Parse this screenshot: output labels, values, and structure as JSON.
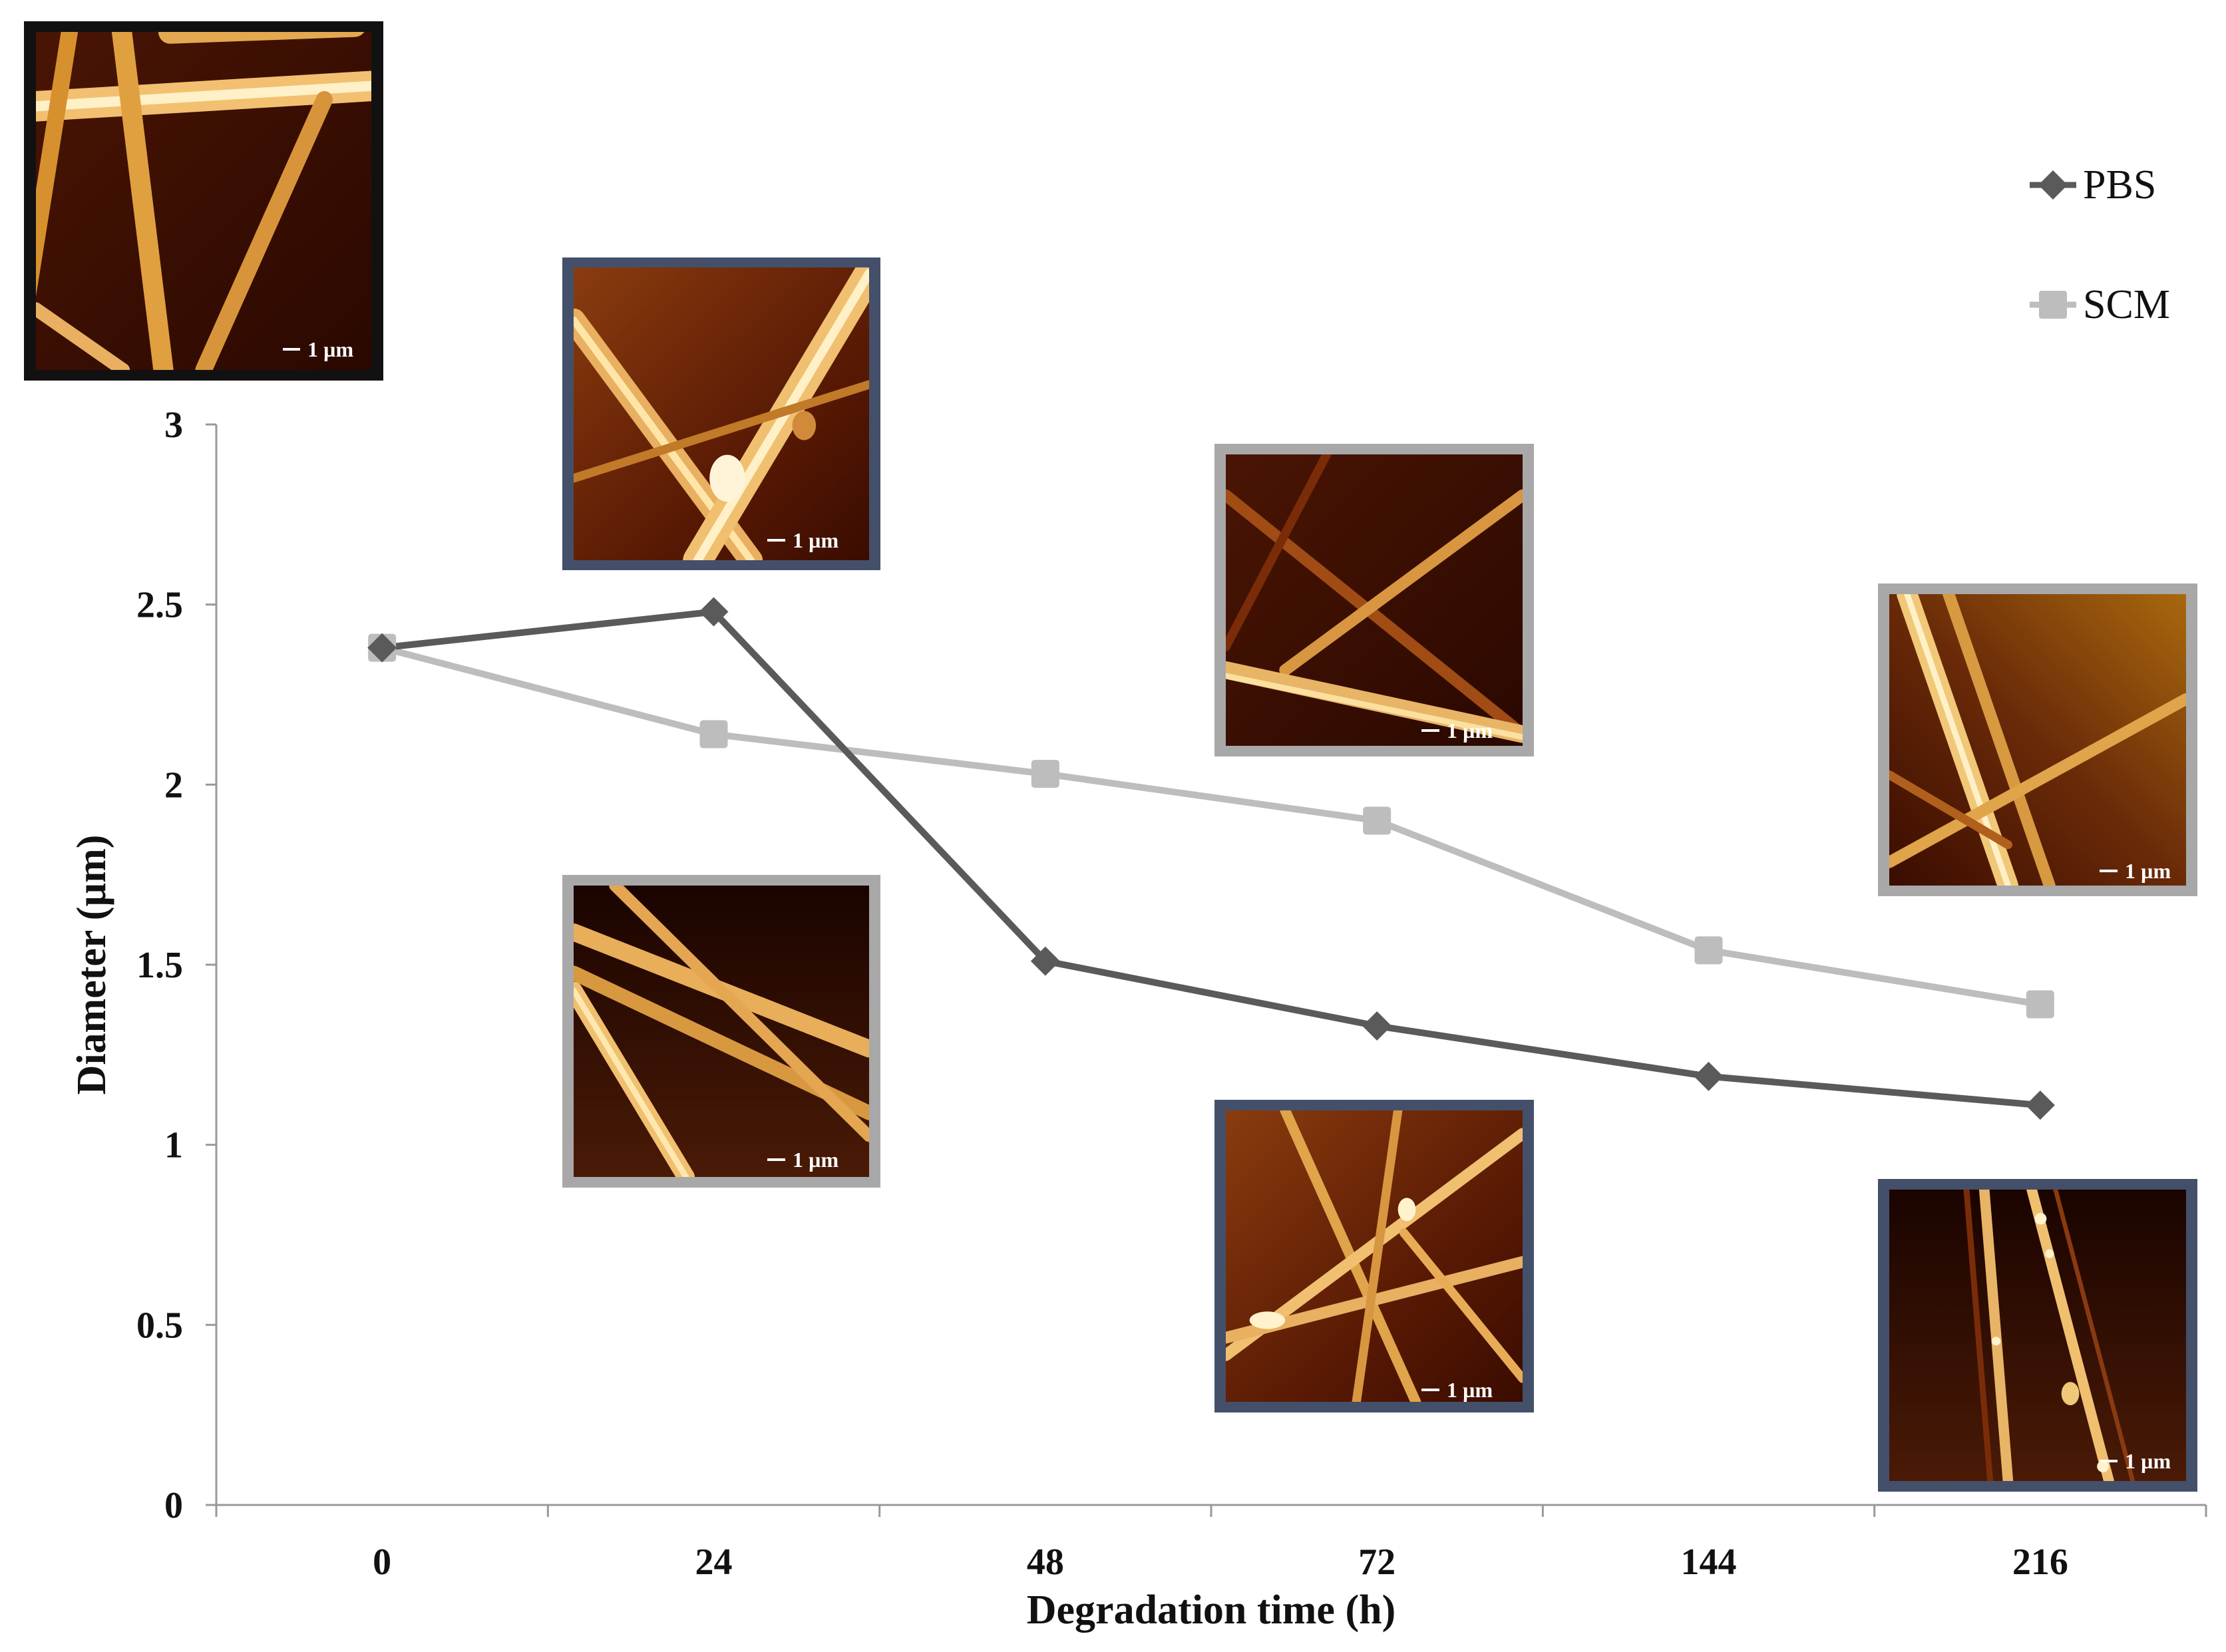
{
  "chart_data": {
    "type": "line",
    "categories": [
      "0",
      "24",
      "48",
      "72",
      "144",
      "216"
    ],
    "series": [
      {
        "name": "PBS",
        "values": [
          2.38,
          2.48,
          1.51,
          1.33,
          1.19,
          1.11
        ],
        "color": "#5a5a5a",
        "marker": "diamond"
      },
      {
        "name": "SCM",
        "values": [
          2.38,
          2.14,
          2.03,
          1.9,
          1.54,
          1.39
        ],
        "color": "#bdbdbd",
        "marker": "square"
      }
    ],
    "xlabel": "Degradation time (h)",
    "ylabel": "Diameter (µm)",
    "ylim": [
      0,
      3
    ],
    "yticks": [
      "0",
      "0.5",
      "1",
      "1.5",
      "2",
      "2.5",
      "3"
    ],
    "grid": false,
    "legend_position": "top-right"
  },
  "insets": [
    {
      "name": "inset-0h",
      "scale_label": "1 µm",
      "frame": "#111111"
    },
    {
      "name": "inset-24h-pbs",
      "scale_label": "1 µm",
      "frame": "#44506a"
    },
    {
      "name": "inset-24h-scm",
      "scale_label": "1 µm",
      "frame": "#a8a8a8"
    },
    {
      "name": "inset-72h-scm",
      "scale_label": "1 µm",
      "frame": "#a8a8a8"
    },
    {
      "name": "inset-72h-pbs",
      "scale_label": "1 µm",
      "frame": "#44506a"
    },
    {
      "name": "inset-216h-scm",
      "scale_label": "1 µm",
      "frame": "#a8a8a8"
    },
    {
      "name": "inset-216h-pbs",
      "scale_label": "1 µm",
      "frame": "#44506a"
    }
  ]
}
